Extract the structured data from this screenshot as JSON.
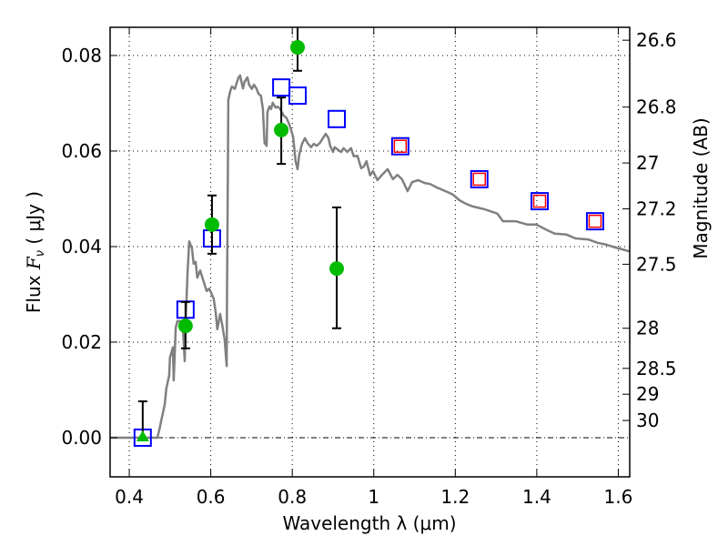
{
  "chart_data": {
    "type": "scatter",
    "title": "",
    "xlabel": "Wavelength  λ (μm)",
    "ylabel": "Flux  Fν  ( μJy )",
    "ylabel_parts": {
      "prefix": "Flux  ",
      "symbol": "F",
      "subscript": "ν",
      "suffix": "  ( μJy )"
    },
    "y2label": "Magnitude (AB)",
    "xlim": [
      0.353,
      1.628
    ],
    "ylim": [
      -0.0082,
      0.0859
    ],
    "grid": true,
    "x_ticks": [
      {
        "value": 0.4,
        "label": "0.4"
      },
      {
        "value": 0.6,
        "label": "0.6"
      },
      {
        "value": 0.8,
        "label": "0.8"
      },
      {
        "value": 1.0,
        "label": "1"
      },
      {
        "value": 1.2,
        "label": "1.2"
      },
      {
        "value": 1.4,
        "label": "1.4"
      },
      {
        "value": 1.6,
        "label": "1.6"
      }
    ],
    "y_ticks": [
      {
        "value": 0.0,
        "label": "0.00"
      },
      {
        "value": 0.02,
        "label": "0.02"
      },
      {
        "value": 0.04,
        "label": "0.04"
      },
      {
        "value": 0.06,
        "label": "0.06"
      },
      {
        "value": 0.08,
        "label": "0.08"
      }
    ],
    "y2_ticks": [
      {
        "flux": 0.0832,
        "label": "26.6"
      },
      {
        "flux": 0.0692,
        "label": "26.8"
      },
      {
        "flux": 0.0575,
        "label": "27"
      },
      {
        "flux": 0.0479,
        "label": "27.2"
      },
      {
        "flux": 0.0363,
        "label": "27.5"
      },
      {
        "flux": 0.0229,
        "label": "28"
      },
      {
        "flux": 0.0145,
        "label": "28.5"
      },
      {
        "flux": 0.0091,
        "label": "29"
      },
      {
        "flux": 0.0036,
        "label": "30"
      }
    ],
    "zero_line": 0.0,
    "colors": {
      "spectrum": "#808080",
      "observed": "#00bb00",
      "model_broad": "#0000ff",
      "model_nir": "#ff0000",
      "errorbar": "#000000"
    },
    "series": [
      {
        "name": "template spectrum",
        "kind": "line",
        "x": [
          0.353,
          0.469,
          0.474,
          0.478,
          0.487,
          0.491,
          0.498,
          0.5,
          0.507,
          0.509,
          0.514,
          0.518,
          0.525,
          0.532,
          0.536,
          0.538,
          0.543,
          0.547,
          0.554,
          0.558,
          0.563,
          0.567,
          0.574,
          0.581,
          0.585,
          0.59,
          0.596,
          0.601,
          0.607,
          0.612,
          0.616,
          0.623,
          0.628,
          0.634,
          0.639,
          0.64,
          0.641,
          0.643,
          0.648,
          0.652,
          0.659,
          0.668,
          0.672,
          0.679,
          0.683,
          0.69,
          0.694,
          0.701,
          0.706,
          0.712,
          0.717,
          0.723,
          0.728,
          0.732,
          0.737,
          0.739,
          0.744,
          0.748,
          0.752,
          0.759,
          0.764,
          0.77,
          0.779,
          0.786,
          0.793,
          0.802,
          0.808,
          0.813,
          0.817,
          0.824,
          0.831,
          0.837,
          0.846,
          0.853,
          0.86,
          0.868,
          0.875,
          0.882,
          0.889,
          0.893,
          0.9,
          0.904,
          0.913,
          0.92,
          0.926,
          0.935,
          0.944,
          0.951,
          0.96,
          0.969,
          0.976,
          0.982,
          0.991,
          0.998,
          1.009,
          1.02,
          1.034,
          1.047,
          1.058,
          1.069,
          1.083,
          1.094,
          1.109,
          1.125,
          1.138,
          1.154,
          1.176,
          1.194,
          1.21,
          1.225,
          1.243,
          1.272,
          1.303,
          1.317,
          1.348,
          1.377,
          1.399,
          1.422,
          1.444,
          1.473,
          1.495,
          1.526,
          1.549,
          1.571,
          1.593,
          1.627
        ],
        "y": [
          0,
          0,
          0.0017,
          0.0034,
          0.0069,
          0.0103,
          0.013,
          0.0168,
          0.0189,
          0.012,
          0.023,
          0.0244,
          0.0244,
          0.0221,
          0.016,
          0.0236,
          0.0345,
          0.0411,
          0.0396,
          0.0364,
          0.0368,
          0.0335,
          0.035,
          0.0331,
          0.032,
          0.0307,
          0.0312,
          0.0303,
          0.0291,
          0.0263,
          0.0227,
          0.0259,
          0.0236,
          0.0206,
          0.015,
          0.0312,
          0.044,
          0.0707,
          0.0726,
          0.0735,
          0.073,
          0.0754,
          0.0758,
          0.0731,
          0.0745,
          0.0754,
          0.0739,
          0.073,
          0.0739,
          0.0731,
          0.072,
          0.0716,
          0.0688,
          0.0617,
          0.0611,
          0.0682,
          0.0693,
          0.0688,
          0.0701,
          0.0691,
          0.0693,
          0.0688,
          0.0674,
          0.0669,
          0.0655,
          0.063,
          0.0579,
          0.0562,
          0.0592,
          0.0615,
          0.0627,
          0.0617,
          0.0608,
          0.0615,
          0.0611,
          0.0617,
          0.0627,
          0.0636,
          0.0627,
          0.0611,
          0.0598,
          0.0608,
          0.0602,
          0.0598,
          0.0606,
          0.0598,
          0.0606,
          0.0589,
          0.059,
          0.0564,
          0.0568,
          0.0579,
          0.0549,
          0.0558,
          0.0539,
          0.055,
          0.0562,
          0.0541,
          0.055,
          0.0541,
          0.0516,
          0.0535,
          0.0539,
          0.0533,
          0.0531,
          0.0524,
          0.0516,
          0.0509,
          0.0497,
          0.049,
          0.0484,
          0.0478,
          0.0469,
          0.0453,
          0.0453,
          0.0446,
          0.0446,
          0.0436,
          0.0427,
          0.0425,
          0.0417,
          0.0415,
          0.0408,
          0.0404,
          0.0398,
          0.039
        ]
      },
      {
        "name": "observed photometry",
        "kind": "errorbar",
        "marker": "circle",
        "points": [
          {
            "x": 0.433,
            "y": 0.0,
            "err_low": 0.0,
            "err_high": 0.0076,
            "marker": "triangle-up"
          },
          {
            "x": 0.538,
            "y": 0.0234,
            "err_low": 0.0187,
            "err_high": 0.0284
          },
          {
            "x": 0.603,
            "y": 0.0446,
            "err_low": 0.0385,
            "err_high": 0.0507
          },
          {
            "x": 0.773,
            "y": 0.0644,
            "err_low": 0.0573,
            "err_high": 0.0712
          },
          {
            "x": 0.813,
            "y": 0.0817,
            "err_low": 0.0768,
            "err_high": 0.09
          },
          {
            "x": 0.909,
            "y": 0.0354,
            "err_low": 0.0229,
            "err_high": 0.0482
          }
        ]
      },
      {
        "name": "model band flux",
        "kind": "scatter",
        "marker": "open-square",
        "points": [
          {
            "x": 0.433,
            "y": 0.0
          },
          {
            "x": 0.538,
            "y": 0.0268
          },
          {
            "x": 0.603,
            "y": 0.0417
          },
          {
            "x": 0.773,
            "y": 0.0733
          },
          {
            "x": 0.813,
            "y": 0.0716
          },
          {
            "x": 0.909,
            "y": 0.0667
          },
          {
            "x": 1.065,
            "y": 0.061
          },
          {
            "x": 1.259,
            "y": 0.0541
          },
          {
            "x": 1.407,
            "y": 0.0495
          },
          {
            "x": 1.543,
            "y": 0.0453
          }
        ]
      },
      {
        "name": "NIR band flux",
        "kind": "scatter",
        "marker": "open-square-small",
        "points": [
          {
            "x": 1.065,
            "y": 0.061
          },
          {
            "x": 1.259,
            "y": 0.0541
          },
          {
            "x": 1.407,
            "y": 0.0495
          },
          {
            "x": 1.543,
            "y": 0.0453
          }
        ]
      }
    ]
  }
}
